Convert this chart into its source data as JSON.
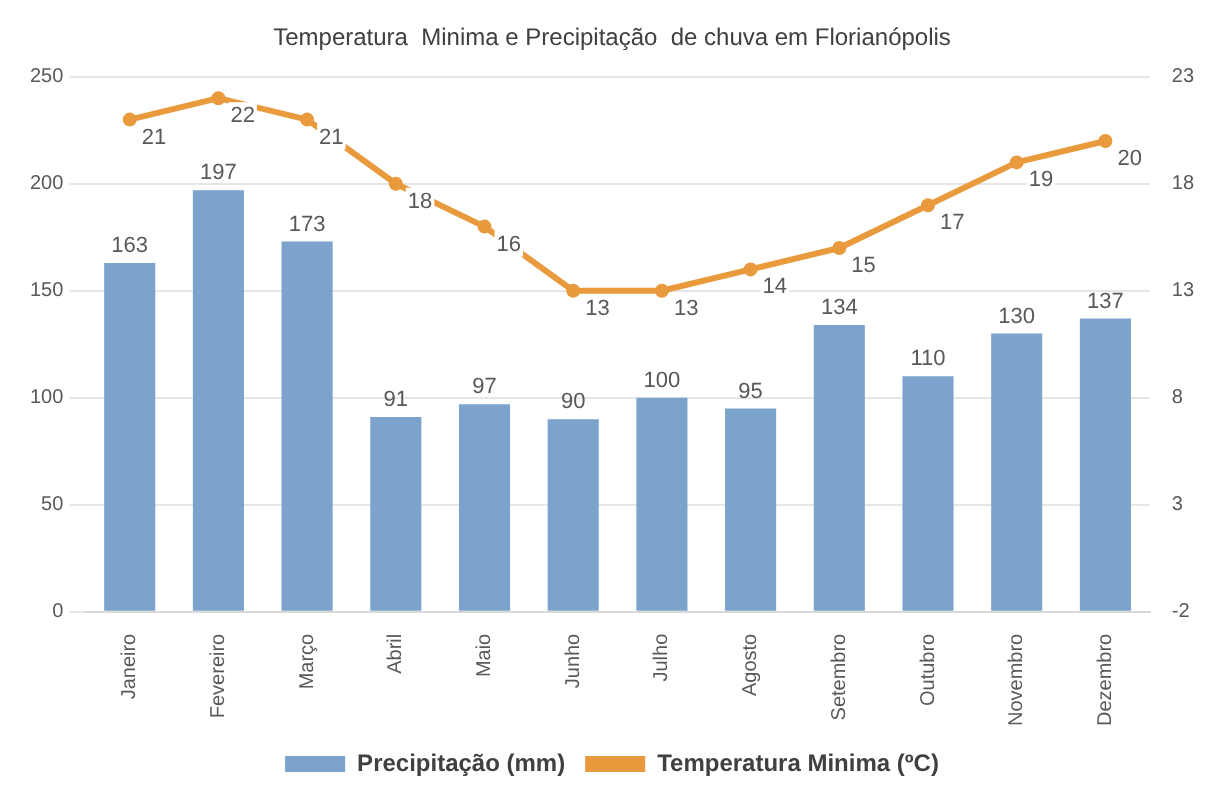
{
  "chart_data": {
    "type": "bar",
    "title": "Temperatura  Minima e Precipitação  de chuva em Florianópolis",
    "categories": [
      "Janeiro",
      "Fevereiro",
      "Março",
      "Abril",
      "Maio",
      "Junho",
      "Julho",
      "Agosto",
      "Setembro",
      "Outubro",
      "Novembro",
      "Dezembro"
    ],
    "series": [
      {
        "name": "Precipitação (mm)",
        "color": "#7ba3cb",
        "values": [
          163,
          197,
          173,
          91,
          97,
          90,
          100,
          95,
          134,
          110,
          130,
          137
        ]
      },
      {
        "name": "Temperatura Minima (ºC)",
        "type": "line",
        "axis": "y2",
        "color": "#e99a3c",
        "marker": "circle",
        "values": [
          21,
          22,
          21,
          18,
          16,
          13,
          13,
          14,
          15,
          17,
          19,
          20
        ]
      }
    ],
    "ylim": [
      0,
      250
    ],
    "yticks": [
      0,
      50,
      100,
      150,
      200,
      250
    ],
    "y2lim": [
      -2,
      23
    ],
    "y2ticks": [
      -2,
      3,
      8,
      13,
      18,
      23
    ],
    "grid": "y",
    "legend": "bottom",
    "data_labels": true
  }
}
